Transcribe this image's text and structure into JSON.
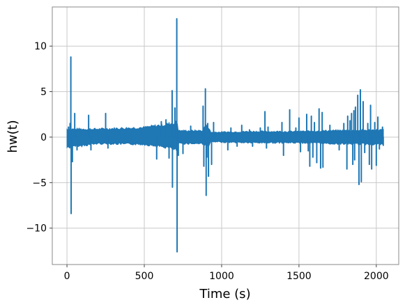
{
  "chart_data": {
    "type": "line",
    "title": "",
    "xlabel": "Time (s)",
    "ylabel": "hw(t)",
    "xlim": [
      -95,
      2145
    ],
    "ylim": [
      -14,
      14.3
    ],
    "xticks": [
      0,
      500,
      1000,
      1500,
      2000
    ],
    "yticks": [
      -10,
      -5,
      0,
      5,
      10
    ],
    "xtick_labels": [
      "0",
      "500",
      "1000",
      "1500",
      "2000"
    ],
    "ytick_labels": [
      "−10",
      "−5",
      "0",
      "5",
      "10"
    ],
    "grid": true,
    "series": [
      {
        "color": "#1f77b4",
        "x_range": [
          0,
          2048
        ],
        "envelope": [
          [
            0,
            1.0,
            -1.3
          ],
          [
            200,
            1.0,
            -0.8
          ],
          [
            500,
            1.2,
            -0.9
          ],
          [
            650,
            1.6,
            -1.3
          ],
          [
            700,
            1.8,
            -1.5
          ],
          [
            712,
            2.0,
            -2.0
          ],
          [
            720,
            0.8,
            -0.8
          ],
          [
            880,
            0.8,
            -0.8
          ],
          [
            890,
            1.4,
            -1.0
          ],
          [
            910,
            1.4,
            -1.2
          ],
          [
            930,
            0.6,
            -0.6
          ],
          [
            1200,
            0.7,
            -0.7
          ],
          [
            1500,
            0.7,
            -0.7
          ],
          [
            1700,
            0.8,
            -0.8
          ],
          [
            2048,
            0.9,
            -0.9
          ]
        ],
        "spikes": [
          {
            "x": 10,
            "y": 1.1
          },
          {
            "x": 15,
            "y": 0.8
          },
          {
            "x": 20,
            "y": 1.5
          },
          {
            "x": 25,
            "y": 8.8
          },
          {
            "x": 27,
            "y": -8.4
          },
          {
            "x": 35,
            "y": -2.7
          },
          {
            "x": 50,
            "y": 2.6
          },
          {
            "x": 65,
            "y": -1.4
          },
          {
            "x": 75,
            "y": -1.0
          },
          {
            "x": 140,
            "y": 2.4
          },
          {
            "x": 155,
            "y": -1.4
          },
          {
            "x": 250,
            "y": 2.6
          },
          {
            "x": 265,
            "y": -1.2
          },
          {
            "x": 520,
            "y": 1.1
          },
          {
            "x": 580,
            "y": -2.4
          },
          {
            "x": 610,
            "y": 1.7
          },
          {
            "x": 640,
            "y": 1.9
          },
          {
            "x": 660,
            "y": -2.3
          },
          {
            "x": 680,
            "y": 5.1
          },
          {
            "x": 682,
            "y": -5.5
          },
          {
            "x": 698,
            "y": 3.2
          },
          {
            "x": 710,
            "y": 13.0
          },
          {
            "x": 712,
            "y": -12.6
          },
          {
            "x": 720,
            "y": -2.0
          },
          {
            "x": 750,
            "y": -1.8
          },
          {
            "x": 800,
            "y": 1.2
          },
          {
            "x": 880,
            "y": 3.4
          },
          {
            "x": 885,
            "y": -3.2
          },
          {
            "x": 895,
            "y": 5.3
          },
          {
            "x": 900,
            "y": -6.4
          },
          {
            "x": 905,
            "y": -2.2
          },
          {
            "x": 910,
            "y": 1.5
          },
          {
            "x": 915,
            "y": -4.3
          },
          {
            "x": 935,
            "y": -3.0
          },
          {
            "x": 948,
            "y": 1.6
          },
          {
            "x": 1040,
            "y": -1.4
          },
          {
            "x": 1060,
            "y": 1.0
          },
          {
            "x": 1100,
            "y": -1.0
          },
          {
            "x": 1130,
            "y": 1.3
          },
          {
            "x": 1180,
            "y": 0.8
          },
          {
            "x": 1200,
            "y": -1.0
          },
          {
            "x": 1250,
            "y": 1.0
          },
          {
            "x": 1280,
            "y": 2.8
          },
          {
            "x": 1290,
            "y": -1.2
          },
          {
            "x": 1300,
            "y": 1.1
          },
          {
            "x": 1390,
            "y": 1.6
          },
          {
            "x": 1400,
            "y": -2.0
          },
          {
            "x": 1440,
            "y": 3.0
          },
          {
            "x": 1480,
            "y": 1.0
          },
          {
            "x": 1500,
            "y": 2.1
          },
          {
            "x": 1510,
            "y": -1.6
          },
          {
            "x": 1550,
            "y": 2.5
          },
          {
            "x": 1560,
            "y": -1.5
          },
          {
            "x": 1570,
            "y": -3.2
          },
          {
            "x": 1580,
            "y": 2.3
          },
          {
            "x": 1590,
            "y": -2.2
          },
          {
            "x": 1600,
            "y": 1.6
          },
          {
            "x": 1615,
            "y": -2.8
          },
          {
            "x": 1630,
            "y": 3.1
          },
          {
            "x": 1640,
            "y": -3.4
          },
          {
            "x": 1650,
            "y": 2.7
          },
          {
            "x": 1655,
            "y": -3.3
          },
          {
            "x": 1700,
            "y": 1.3
          },
          {
            "x": 1760,
            "y": -1.4
          },
          {
            "x": 1790,
            "y": 1.5
          },
          {
            "x": 1810,
            "y": -3.5
          },
          {
            "x": 1815,
            "y": 2.3
          },
          {
            "x": 1830,
            "y": 1.8
          },
          {
            "x": 1840,
            "y": 2.6
          },
          {
            "x": 1848,
            "y": -3.0
          },
          {
            "x": 1855,
            "y": 2.9
          },
          {
            "x": 1860,
            "y": -2.5
          },
          {
            "x": 1865,
            "y": 3.3
          },
          {
            "x": 1880,
            "y": 4.6
          },
          {
            "x": 1888,
            "y": -5.2
          },
          {
            "x": 1897,
            "y": 5.2
          },
          {
            "x": 1903,
            "y": -4.9
          },
          {
            "x": 1915,
            "y": 3.9
          },
          {
            "x": 1925,
            "y": -1.7
          },
          {
            "x": 1945,
            "y": 1.5
          },
          {
            "x": 1955,
            "y": -3.0
          },
          {
            "x": 1963,
            "y": 3.5
          },
          {
            "x": 1970,
            "y": -3.5
          },
          {
            "x": 1990,
            "y": 1.6
          },
          {
            "x": 2000,
            "y": -3.1
          },
          {
            "x": 2010,
            "y": 2.2
          },
          {
            "x": 2020,
            "y": -1.3
          },
          {
            "x": 2040,
            "y": 1.1
          },
          {
            "x": 2045,
            "y": -0.9
          }
        ]
      }
    ]
  }
}
